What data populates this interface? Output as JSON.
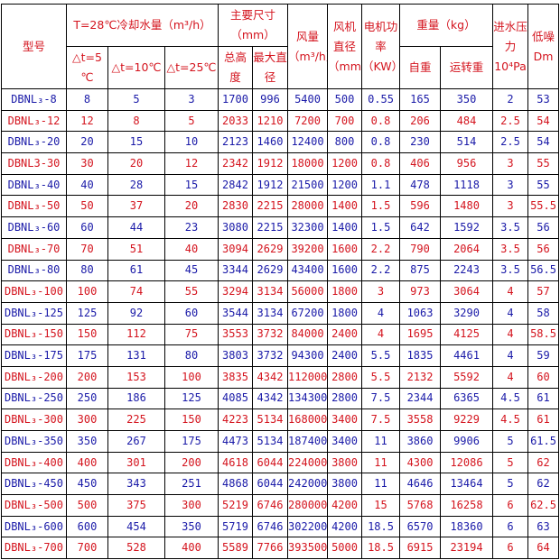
{
  "header": {
    "model": "型号",
    "cooling_water": "T=28℃冷却水量（m³/h）",
    "dt5": "△t=5 ℃",
    "dt10": "△t=10℃",
    "dt25": "△t=25℃",
    "main_dims": "主要尺寸（mm）",
    "total_height": "总高度",
    "max_diameter": "最大直径",
    "air_volume": "风量（m³/h）",
    "fan_diameter": "风机直径（mm）",
    "motor_power": "电机功率（KW）",
    "weight": "重量（kg）",
    "self_weight": "自重",
    "operating_weight": "运转重",
    "inlet_pressure": "进水压力 10⁴Pa",
    "noise": "低噪 Dm"
  },
  "colors": {
    "blue": "#1a1aa8",
    "red": "#d4141e"
  },
  "rows": [
    [
      "DBNL₃-8",
      "8",
      "5",
      "3",
      "1700",
      "996",
      "5400",
      "500",
      "0.55",
      "165",
      "350",
      "2",
      "53"
    ],
    [
      "DBNL₃-12",
      "12",
      "8",
      "5",
      "2033",
      "1210",
      "7200",
      "700",
      "0.8",
      "206",
      "484",
      "2.5",
      "54"
    ],
    [
      "DBNL₃-20",
      "20",
      "15",
      "10",
      "2123",
      "1460",
      "12400",
      "800",
      "0.8",
      "230",
      "514",
      "2.5",
      "54"
    ],
    [
      "DBNL3-30",
      "30",
      "20",
      "12",
      "2342",
      "1912",
      "18000",
      "1200",
      "0.8",
      "406",
      "956",
      "3",
      "55"
    ],
    [
      "DBNL₃-40",
      "40",
      "28",
      "15",
      "2842",
      "1912",
      "21500",
      "1200",
      "1.1",
      "478",
      "1118",
      "3",
      "55"
    ],
    [
      "DBNL₃-50",
      "50",
      "37",
      "20",
      "2830",
      "2215",
      "28000",
      "1400",
      "1.5",
      "596",
      "1480",
      "3",
      "55.5"
    ],
    [
      "DBNL₃-60",
      "60",
      "44",
      "23",
      "3080",
      "2215",
      "32300",
      "1400",
      "1.5",
      "642",
      "1592",
      "3.5",
      "56"
    ],
    [
      "DBNL₃-70",
      "70",
      "51",
      "40",
      "3094",
      "2629",
      "39200",
      "1600",
      "2.2",
      "790",
      "2064",
      "3.5",
      "56"
    ],
    [
      "DBNL₃-80",
      "80",
      "61",
      "45",
      "3344",
      "2629",
      "43400",
      "1600",
      "2.2",
      "875",
      "2243",
      "3.5",
      "56.5"
    ],
    [
      "DBNL₃-100",
      "100",
      "74",
      "55",
      "3294",
      "3134",
      "56000",
      "1800",
      "3",
      "973",
      "3064",
      "4",
      "57"
    ],
    [
      "DBNL₃-125",
      "125",
      "92",
      "60",
      "3544",
      "3134",
      "67200",
      "1800",
      "4",
      "1063",
      "3290",
      "4",
      "58"
    ],
    [
      "DBNL₃-150",
      "150",
      "112",
      "75",
      "3553",
      "3732",
      "84000",
      "2400",
      "4",
      "1695",
      "4125",
      "4",
      "58.5"
    ],
    [
      "DBNL₃-175",
      "175",
      "131",
      "80",
      "3803",
      "3732",
      "94300",
      "2400",
      "5.5",
      "1835",
      "4461",
      "4",
      "59"
    ],
    [
      "DBNL₃-200",
      "200",
      "153",
      "100",
      "3835",
      "4342",
      "112000",
      "2800",
      "5.5",
      "2132",
      "5592",
      "4",
      "60"
    ],
    [
      "DBNL₃-250",
      "250",
      "186",
      "125",
      "4085",
      "4342",
      "134300",
      "2800",
      "7.5",
      "2344",
      "6365",
      "4.5",
      "61"
    ],
    [
      "DBNL₃-300",
      "300",
      "225",
      "150",
      "4223",
      "5134",
      "168000",
      "3400",
      "7.5",
      "3558",
      "9229",
      "4.5",
      "61"
    ],
    [
      "DBNL₃-350",
      "350",
      "267",
      "175",
      "4473",
      "5134",
      "187400",
      "3400",
      "11",
      "3860",
      "9906",
      "5",
      "61.5"
    ],
    [
      "DBNL₃-400",
      "400",
      "301",
      "200",
      "4618",
      "6044",
      "224000",
      "3800",
      "11",
      "4300",
      "12086",
      "5",
      "62"
    ],
    [
      "DBNL₃-450",
      "450",
      "343",
      "251",
      "4868",
      "6044",
      "242000",
      "3800",
      "11",
      "4646",
      "13464",
      "5",
      "62"
    ],
    [
      "DBNL₃-500",
      "500",
      "375",
      "300",
      "5219",
      "6746",
      "280000",
      "4200",
      "15",
      "5768",
      "16258",
      "6",
      "62.5"
    ],
    [
      "DBNL₃-600",
      "600",
      "454",
      "350",
      "5719",
      "6746",
      "302200",
      "4200",
      "18.5",
      "6570",
      "18360",
      "6",
      "63"
    ],
    [
      "DBNL₃-700",
      "700",
      "528",
      "400",
      "5589",
      "7766",
      "393500",
      "5000",
      "18.5",
      "6915",
      "23194",
      "6",
      "64"
    ]
  ]
}
